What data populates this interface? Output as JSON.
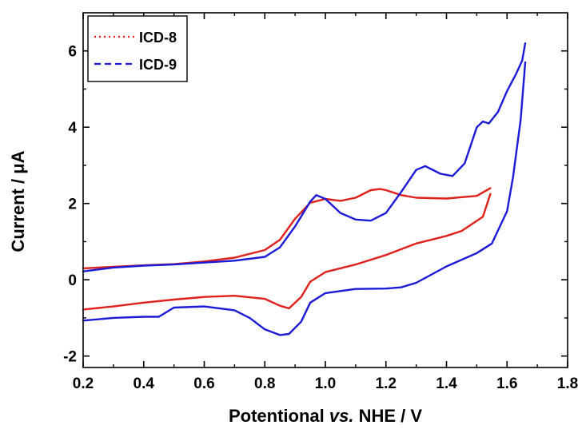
{
  "chart_data": {
    "type": "line",
    "xlabel": "Potentional vs. NHE / V",
    "xlabel_parts": [
      "Potentional ",
      "vs.",
      " NHE / V"
    ],
    "ylabel": "Current / μA",
    "xlim": [
      0.2,
      1.8
    ],
    "ylim": [
      -2.3,
      7.0
    ],
    "x_ticks": [
      0.2,
      0.4,
      0.6,
      0.8,
      1.0,
      1.2,
      1.4,
      1.6,
      1.8
    ],
    "x_tick_labels": [
      "0.2",
      "0.4",
      "0.6",
      "0.8",
      "1.0",
      "1.2",
      "1.4",
      "1.6",
      "1.8"
    ],
    "y_ticks": [
      -2,
      0,
      2,
      4,
      6
    ],
    "y_tick_labels": [
      "-2",
      "0",
      "2",
      "4",
      "6"
    ],
    "grid": false,
    "legend_position": "top-left",
    "series": [
      {
        "name": "ICD-8",
        "color": "#e0201a",
        "legend_style": "dotted",
        "upper": [
          [
            0.2,
            0.3
          ],
          [
            0.3,
            0.34
          ],
          [
            0.4,
            0.38
          ],
          [
            0.5,
            0.41
          ],
          [
            0.6,
            0.48
          ],
          [
            0.7,
            0.58
          ],
          [
            0.8,
            0.78
          ],
          [
            0.85,
            1.05
          ],
          [
            0.9,
            1.6
          ],
          [
            0.95,
            2.02
          ],
          [
            1.0,
            2.12
          ],
          [
            1.05,
            2.07
          ],
          [
            1.1,
            2.15
          ],
          [
            1.15,
            2.35
          ],
          [
            1.18,
            2.38
          ],
          [
            1.2,
            2.35
          ],
          [
            1.25,
            2.22
          ],
          [
            1.3,
            2.15
          ],
          [
            1.4,
            2.13
          ],
          [
            1.5,
            2.2
          ],
          [
            1.545,
            2.4
          ]
        ],
        "lower": [
          [
            1.545,
            2.25
          ],
          [
            1.52,
            1.65
          ],
          [
            1.45,
            1.28
          ],
          [
            1.4,
            1.15
          ],
          [
            1.3,
            0.95
          ],
          [
            1.2,
            0.65
          ],
          [
            1.1,
            0.4
          ],
          [
            1.0,
            0.2
          ],
          [
            0.95,
            -0.05
          ],
          [
            0.92,
            -0.45
          ],
          [
            0.88,
            -0.75
          ],
          [
            0.85,
            -0.68
          ],
          [
            0.8,
            -0.5
          ],
          [
            0.7,
            -0.42
          ],
          [
            0.6,
            -0.45
          ],
          [
            0.5,
            -0.52
          ],
          [
            0.4,
            -0.6
          ],
          [
            0.3,
            -0.7
          ],
          [
            0.2,
            -0.78
          ]
        ]
      },
      {
        "name": "ICD-9",
        "color": "#1a1ad8",
        "legend_style": "dashed",
        "upper": [
          [
            0.2,
            0.22
          ],
          [
            0.3,
            0.32
          ],
          [
            0.4,
            0.37
          ],
          [
            0.5,
            0.4
          ],
          [
            0.6,
            0.45
          ],
          [
            0.7,
            0.5
          ],
          [
            0.8,
            0.6
          ],
          [
            0.85,
            0.85
          ],
          [
            0.9,
            1.4
          ],
          [
            0.95,
            2.05
          ],
          [
            0.97,
            2.22
          ],
          [
            1.0,
            2.12
          ],
          [
            1.05,
            1.75
          ],
          [
            1.1,
            1.58
          ],
          [
            1.15,
            1.55
          ],
          [
            1.2,
            1.75
          ],
          [
            1.25,
            2.3
          ],
          [
            1.3,
            2.88
          ],
          [
            1.33,
            2.98
          ],
          [
            1.38,
            2.78
          ],
          [
            1.42,
            2.72
          ],
          [
            1.46,
            3.05
          ],
          [
            1.5,
            4.0
          ],
          [
            1.52,
            4.15
          ],
          [
            1.54,
            4.1
          ],
          [
            1.57,
            4.4
          ],
          [
            1.6,
            4.95
          ],
          [
            1.63,
            5.4
          ],
          [
            1.65,
            5.75
          ],
          [
            1.66,
            6.2
          ]
        ],
        "lower": [
          [
            1.66,
            5.7
          ],
          [
            1.645,
            4.2
          ],
          [
            1.62,
            2.7
          ],
          [
            1.6,
            1.8
          ],
          [
            1.55,
            0.95
          ],
          [
            1.5,
            0.7
          ],
          [
            1.4,
            0.35
          ],
          [
            1.3,
            -0.08
          ],
          [
            1.25,
            -0.2
          ],
          [
            1.2,
            -0.23
          ],
          [
            1.1,
            -0.24
          ],
          [
            1.0,
            -0.35
          ],
          [
            0.95,
            -0.6
          ],
          [
            0.92,
            -1.1
          ],
          [
            0.88,
            -1.42
          ],
          [
            0.85,
            -1.45
          ],
          [
            0.8,
            -1.3
          ],
          [
            0.75,
            -1.0
          ],
          [
            0.7,
            -0.8
          ],
          [
            0.6,
            -0.7
          ],
          [
            0.5,
            -0.73
          ],
          [
            0.45,
            -0.97
          ],
          [
            0.4,
            -0.97
          ],
          [
            0.3,
            -1.0
          ],
          [
            0.2,
            -1.07
          ]
        ]
      }
    ]
  }
}
